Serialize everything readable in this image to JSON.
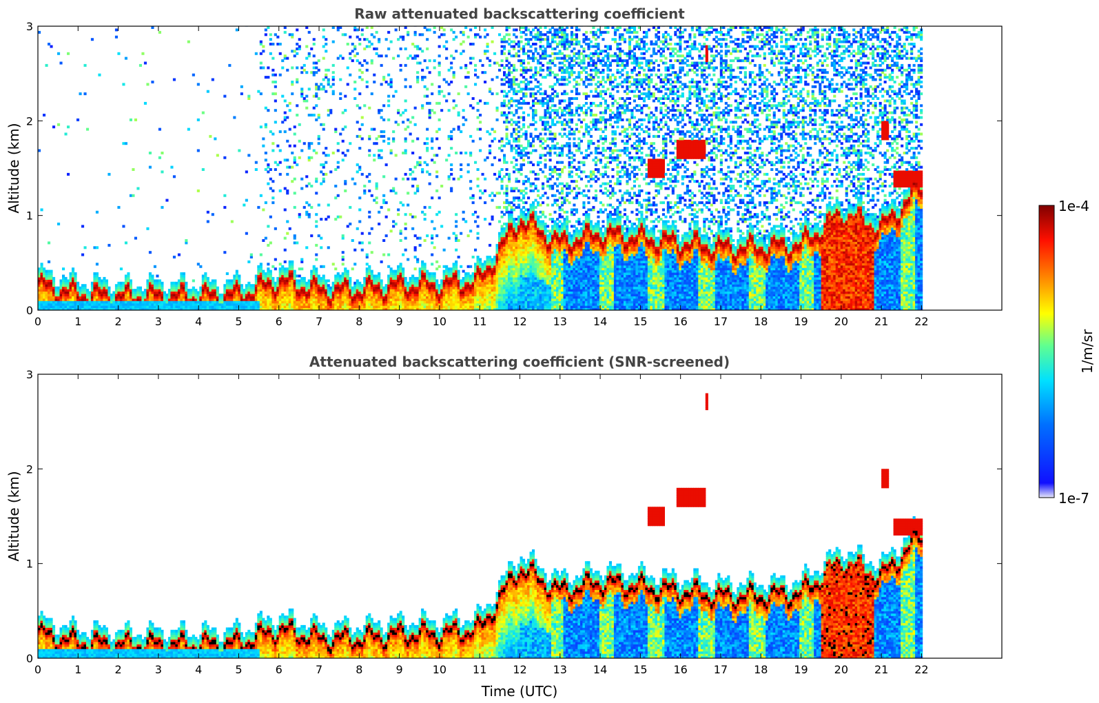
{
  "chart_data": [
    {
      "type": "heatmap",
      "title": "Raw attenuated backscattering coefficient",
      "xlabel": "",
      "ylabel": "Altitude (km)",
      "xlim": [
        0,
        24
      ],
      "ylim": [
        0,
        3
      ],
      "xticks": [
        "0",
        "1",
        "2",
        "3",
        "4",
        "5",
        "6",
        "7",
        "8",
        "9",
        "10",
        "11",
        "12",
        "13",
        "14",
        "15",
        "16",
        "17",
        "18",
        "19",
        "20",
        "21",
        "22"
      ],
      "yticks": [
        "0",
        "1",
        "2",
        "3"
      ],
      "data_extent_hours": [
        0,
        22
      ],
      "screened": false,
      "layer_height_km": [
        {
          "t": 0,
          "z": 0.26
        },
        {
          "t": 1,
          "z": 0.16
        },
        {
          "t": 2,
          "z": 0.14
        },
        {
          "t": 3,
          "z": 0.14
        },
        {
          "t": 4,
          "z": 0.14
        },
        {
          "t": 5,
          "z": 0.15
        },
        {
          "t": 6,
          "z": 0.3
        },
        {
          "t": 7,
          "z": 0.2
        },
        {
          "t": 8,
          "z": 0.2
        },
        {
          "t": 9,
          "z": 0.25
        },
        {
          "t": 10,
          "z": 0.25
        },
        {
          "t": 11,
          "z": 0.3
        },
        {
          "t": 12,
          "z": 0.95
        },
        {
          "t": 13,
          "z": 0.7
        },
        {
          "t": 14,
          "z": 0.8
        },
        {
          "t": 15,
          "z": 0.75
        },
        {
          "t": 16,
          "z": 0.7
        },
        {
          "t": 17,
          "z": 0.65
        },
        {
          "t": 18,
          "z": 0.65
        },
        {
          "t": 19,
          "z": 0.68
        },
        {
          "t": 20,
          "z": 1.0
        },
        {
          "t": 21,
          "z": 0.85
        },
        {
          "t": 22,
          "z": 1.3
        }
      ],
      "elevated_clouds": [
        {
          "t_start": 15.2,
          "t_end": 15.6,
          "z": 1.5
        },
        {
          "t_start": 15.9,
          "t_end": 16.6,
          "z": 1.7
        },
        {
          "t_start": 16.6,
          "t_end": 16.7,
          "z": 2.72
        },
        {
          "t_start": 21.0,
          "t_end": 21.2,
          "z": 1.9
        },
        {
          "t_start": 21.3,
          "t_end": 22.0,
          "z": 1.38
        }
      ]
    },
    {
      "type": "heatmap",
      "title": "Attenuated backscattering coefficient (SNR-screened)",
      "xlabel": "Time (UTC)",
      "ylabel": "Altitude (km)",
      "xlim": [
        0,
        24
      ],
      "ylim": [
        0,
        3
      ],
      "xticks": [
        "0",
        "1",
        "2",
        "3",
        "4",
        "5",
        "6",
        "7",
        "8",
        "9",
        "10",
        "11",
        "12",
        "13",
        "14",
        "15",
        "16",
        "17",
        "18",
        "19",
        "20",
        "21",
        "22"
      ],
      "yticks": [
        "0",
        "1",
        "2",
        "3"
      ],
      "data_extent_hours": [
        0,
        22
      ],
      "screened": true
    }
  ],
  "colorbar": {
    "label": "1/m/sr",
    "max_label": "1e-4",
    "min_label": "1e-7",
    "colors": [
      "#e8e8f8",
      "#0000ff",
      "#0080ff",
      "#00ffff",
      "#80ff80",
      "#ffff00",
      "#ff8000",
      "#ff0000",
      "#800000"
    ]
  }
}
